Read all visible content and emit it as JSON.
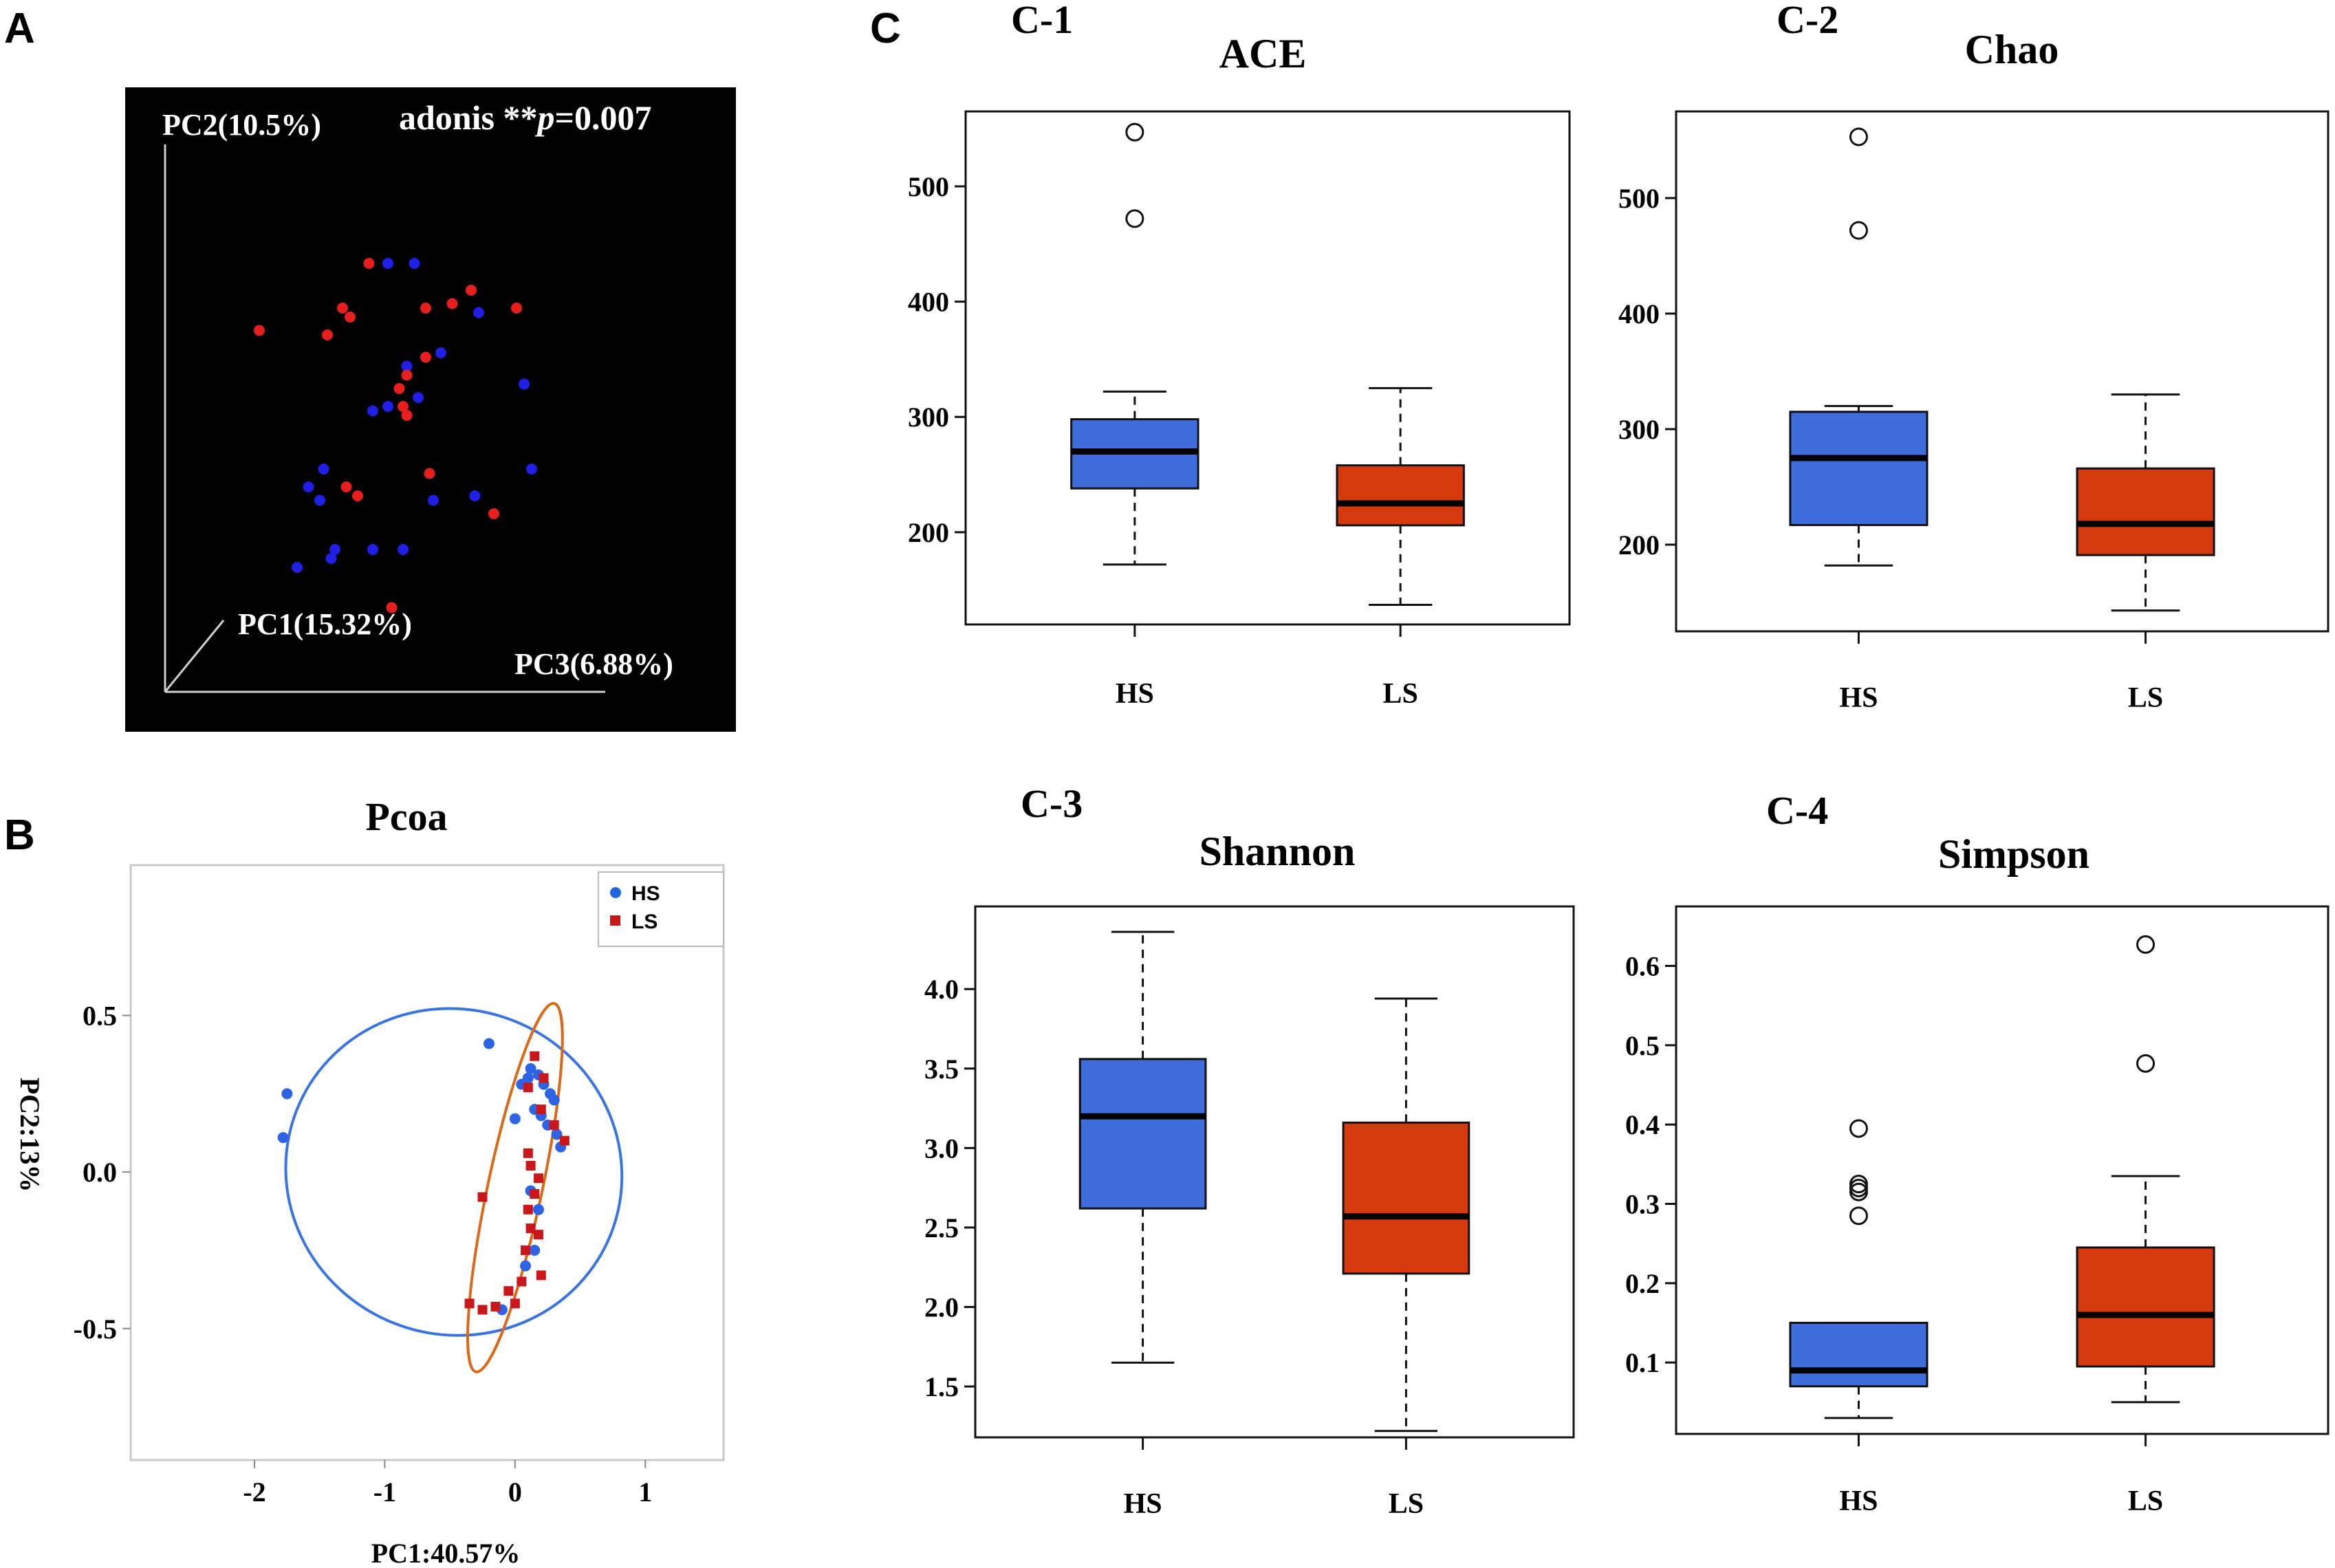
{
  "panels": {
    "a": "A",
    "b": "B",
    "c": "C"
  },
  "colors": {
    "hs": "#3f6ddc",
    "ls": "#d43a0d",
    "pt_hs": "#1f1fe6",
    "pt_ls": "#e61e1e",
    "ell_hs": "#3a74e0",
    "ell_ls": "#d86a1a",
    "sq_ls": "#c8181c",
    "bg3d": "#000000"
  },
  "chart_data": [
    {
      "id": "A",
      "type": "scatter",
      "title": "",
      "annotation": {
        "text_prefix": "adonis **",
        "p_symbol": "p",
        "p_value": "=0.007"
      },
      "axes": {
        "pc2": "PC2(10.5%)",
        "pc1": "PC1(15.32%)",
        "pc3": "PC3(6.88%)"
      },
      "series": [
        {
          "name": "HS",
          "x": [
            0.24,
            0.33,
            0.34,
            0.44,
            0.52,
            0.3,
            0.27,
            0.31,
            0.44,
            0.48,
            0.6,
            0.71,
            0.84,
            0.86,
            0.56,
            0.53,
            0.62,
            0.72,
            0.48,
            0.55
          ],
          "y": [
            0.1,
            0.12,
            0.14,
            0.14,
            0.14,
            0.25,
            0.28,
            0.32,
            0.45,
            0.46,
            0.25,
            0.26,
            0.51,
            0.32,
            0.48,
            0.55,
            0.58,
            0.67,
            0.78,
            0.78
          ]
        },
        {
          "name": "LS",
          "x": [
            0.49,
            0.76,
            0.4,
            0.37,
            0.59,
            0.52,
            0.53,
            0.51,
            0.53,
            0.58,
            0.14,
            0.38,
            0.36,
            0.58,
            0.65,
            0.7,
            0.82,
            0.43,
            0.32
          ],
          "y": [
            0.01,
            0.22,
            0.26,
            0.28,
            0.31,
            0.46,
            0.44,
            0.5,
            0.53,
            0.57,
            0.63,
            0.66,
            0.68,
            0.68,
            0.69,
            0.72,
            0.68,
            0.78,
            0.62
          ]
        }
      ]
    },
    {
      "id": "B",
      "type": "scatter",
      "title": "Pcoa",
      "xlabel": "PC1:40.57%",
      "ylabel": "PC2:13%",
      "xlim": [
        -2.95,
        1.6
      ],
      "ylim": [
        -0.92,
        0.98
      ],
      "xticks": [
        "-2",
        "-1",
        "0",
        "1"
      ],
      "xtick_values": [
        -2,
        -1,
        0,
        1
      ],
      "yticks": [
        "0.5",
        "0.0",
        "-0.5"
      ],
      "ytick_values": [
        0.5,
        0.0,
        -0.5
      ],
      "legend": [
        "HS",
        "LS"
      ],
      "legend_position": "top-right",
      "series": [
        {
          "name": "HS",
          "x": [
            -1.75,
            -1.78,
            -0.2,
            0.05,
            0.1,
            0.18,
            0.22,
            0.27,
            0.3,
            0.15,
            0.2,
            0.25,
            0.32,
            0.35,
            0.0,
            0.12,
            0.18,
            0.15,
            0.08,
            -0.1,
            0.12
          ],
          "y": [
            0.25,
            0.11,
            0.41,
            0.28,
            0.3,
            0.31,
            0.28,
            0.25,
            0.23,
            0.2,
            0.18,
            0.15,
            0.12,
            0.08,
            0.17,
            -0.06,
            -0.12,
            -0.25,
            -0.3,
            -0.44,
            0.33
          ]
        },
        {
          "name": "LS",
          "x": [
            0.15,
            0.1,
            0.2,
            0.3,
            0.38,
            0.1,
            0.12,
            0.18,
            0.15,
            0.1,
            0.12,
            0.18,
            0.08,
            0.05,
            0.0,
            -0.05,
            -0.15,
            -0.35,
            -0.25,
            0.2,
            0.22,
            -0.25
          ],
          "y": [
            0.37,
            0.27,
            0.2,
            0.15,
            0.1,
            0.06,
            0.02,
            -0.02,
            -0.07,
            -0.12,
            -0.18,
            -0.2,
            -0.25,
            -0.35,
            -0.42,
            -0.38,
            -0.43,
            -0.42,
            -0.08,
            -0.33,
            0.3,
            -0.44
          ]
        }
      ],
      "ellipses": [
        {
          "group": "HS",
          "cx": -0.47,
          "cy": 0.0,
          "rx": 1.35,
          "ry": 0.53,
          "angle": -20
        },
        {
          "group": "LS",
          "cx": 0.0,
          "cy": -0.05,
          "rx": 0.22,
          "ry": 0.62,
          "angle": 10
        }
      ]
    },
    {
      "id": "C-1",
      "type": "box",
      "label": "C-1",
      "title": "ACE",
      "categories": [
        "HS",
        "LS"
      ],
      "ylim": [
        120,
        565
      ],
      "yticks": [
        200,
        300,
        400,
        500
      ],
      "boxes": [
        {
          "group": "HS",
          "whisker_low": 172,
          "q1": 238,
          "median": 270,
          "q3": 298,
          "whisker_high": 322,
          "outliers": [
            472,
            547
          ]
        },
        {
          "group": "LS",
          "whisker_low": 137,
          "q1": 206,
          "median": 225,
          "q3": 258,
          "whisker_high": 325,
          "outliers": []
        }
      ]
    },
    {
      "id": "C-2",
      "type": "box",
      "label": "C-2",
      "title": "Chao",
      "categories": [
        "HS",
        "LS"
      ],
      "ylim": [
        125,
        575
      ],
      "yticks": [
        200,
        300,
        400,
        500
      ],
      "boxes": [
        {
          "group": "HS",
          "whisker_low": 182,
          "q1": 217,
          "median": 275,
          "q3": 315,
          "whisker_high": 320,
          "outliers": [
            472,
            553
          ]
        },
        {
          "group": "LS",
          "whisker_low": 143,
          "q1": 191,
          "median": 218,
          "q3": 266,
          "whisker_high": 330,
          "outliers": []
        }
      ]
    },
    {
      "id": "C-3",
      "type": "box",
      "label": "C-3",
      "title": "Shannon",
      "categories": [
        "HS",
        "LS"
      ],
      "ylim": [
        1.18,
        4.52
      ],
      "yticks": [
        1.5,
        2.0,
        2.5,
        3.0,
        3.5,
        4.0
      ],
      "ytick_labels": [
        "1.5",
        "2.0",
        "2.5",
        "3.0",
        "3.5",
        "4.0"
      ],
      "boxes": [
        {
          "group": "HS",
          "whisker_low": 1.65,
          "q1": 2.62,
          "median": 3.2,
          "q3": 3.56,
          "whisker_high": 4.36,
          "outliers": []
        },
        {
          "group": "LS",
          "whisker_low": 1.22,
          "q1": 2.21,
          "median": 2.57,
          "q3": 3.16,
          "whisker_high": 3.94,
          "outliers": []
        }
      ]
    },
    {
      "id": "C-4",
      "type": "box",
      "label": "C-4",
      "title": "Simpson",
      "categories": [
        "HS",
        "LS"
      ],
      "ylim": [
        0.01,
        0.675
      ],
      "yticks": [
        0.1,
        0.2,
        0.3,
        0.4,
        0.5,
        0.6
      ],
      "ytick_labels": [
        "0.1",
        "0.2",
        "0.3",
        "0.4",
        "0.5",
        "0.6"
      ],
      "boxes": [
        {
          "group": "HS",
          "whisker_low": 0.03,
          "q1": 0.07,
          "median": 0.09,
          "q3": 0.15,
          "whisker_high": 0.15,
          "outliers": [
            0.285,
            0.315,
            0.32,
            0.325,
            0.395
          ]
        },
        {
          "group": "LS",
          "whisker_low": 0.05,
          "q1": 0.095,
          "median": 0.16,
          "q3": 0.245,
          "whisker_high": 0.335,
          "outliers": [
            0.477,
            0.627
          ]
        }
      ]
    }
  ]
}
